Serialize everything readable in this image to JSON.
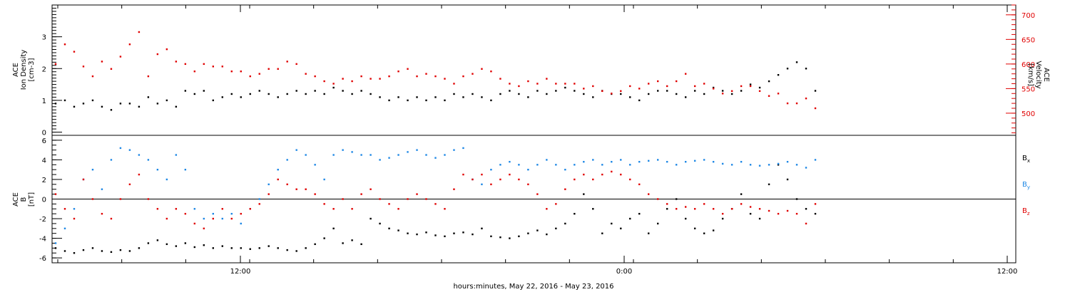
{
  "chart_data": [
    {
      "type": "scatter",
      "panel": "top",
      "left_axis": {
        "label_lines": [
          "ACE",
          "Ion Density",
          "[cm-3]"
        ],
        "ylim": [
          -0.1,
          4.0
        ],
        "ticks": [
          0,
          1,
          2,
          3
        ],
        "tick_labels": [
          "0",
          "1",
          "2",
          "3"
        ],
        "color": "#000000"
      },
      "right_axis": {
        "label_lines": [
          "ACE",
          "Velocity",
          "[km/s]"
        ],
        "ylim": [
          455,
          720
        ],
        "ticks": [
          500,
          550,
          600,
          650,
          700
        ],
        "tick_labels": [
          "500",
          "550",
          "600",
          "650",
          "700"
        ],
        "color": "#e00000"
      },
      "series": [
        {
          "axis": "left",
          "color": "#000000",
          "x": [
            0,
            1,
            2,
            3,
            4,
            5,
            6,
            7,
            8,
            9,
            10,
            11,
            12,
            13,
            14,
            15,
            16,
            17,
            18,
            19,
            20,
            21,
            22,
            23,
            24,
            25,
            26,
            27,
            28,
            29,
            30,
            31,
            32,
            33,
            34,
            35,
            36,
            37,
            38,
            39,
            40,
            41,
            42,
            43,
            44,
            45,
            46,
            47,
            48,
            49,
            50,
            51,
            52,
            53,
            54,
            55,
            56,
            57,
            58,
            59,
            60,
            61,
            62,
            63,
            64,
            65,
            66,
            67,
            68,
            69,
            70,
            71,
            72,
            73,
            74,
            75,
            76,
            77,
            78,
            79,
            80,
            81,
            82
          ],
          "values": [
            0.9,
            1.0,
            0.8,
            0.9,
            1.0,
            0.8,
            0.7,
            0.9,
            0.9,
            0.8,
            1.1,
            0.9,
            1.0,
            0.8,
            1.3,
            1.2,
            1.3,
            1.0,
            1.1,
            1.2,
            1.1,
            1.2,
            1.3,
            1.2,
            1.1,
            1.2,
            1.3,
            1.2,
            1.3,
            1.2,
            1.4,
            1.3,
            1.2,
            1.3,
            1.2,
            1.1,
            1.0,
            1.1,
            1.0,
            1.1,
            1.0,
            1.1,
            1.0,
            1.2,
            1.1,
            1.2,
            1.1,
            1.0,
            1.2,
            1.3,
            1.2,
            1.1,
            1.3,
            1.2,
            1.3,
            1.4,
            1.3,
            1.2,
            1.1,
            1.3,
            1.2,
            1.2,
            1.1,
            1.0,
            1.2,
            1.3,
            1.3,
            1.2,
            1.1,
            1.3,
            1.2,
            1.4,
            1.3,
            1.2,
            1.3,
            1.5,
            1.4,
            1.6,
            1.8,
            2.0,
            2.2,
            2.0,
            1.3
          ]
        },
        {
          "axis": "right",
          "color": "#e00000",
          "x": [
            0,
            1,
            2,
            3,
            4,
            5,
            6,
            7,
            8,
            9,
            10,
            11,
            12,
            13,
            14,
            15,
            16,
            17,
            18,
            19,
            20,
            21,
            22,
            23,
            24,
            25,
            26,
            27,
            28,
            29,
            30,
            31,
            32,
            33,
            34,
            35,
            36,
            37,
            38,
            39,
            40,
            41,
            42,
            43,
            44,
            45,
            46,
            47,
            48,
            49,
            50,
            51,
            52,
            53,
            54,
            55,
            56,
            57,
            58,
            59,
            60,
            61,
            62,
            63,
            64,
            65,
            66,
            67,
            68,
            69,
            70,
            71,
            72,
            73,
            74,
            75,
            76,
            77,
            78,
            79,
            80,
            81,
            82
          ],
          "values": [
            600,
            640,
            625,
            595,
            575,
            605,
            590,
            615,
            640,
            665,
            575,
            620,
            630,
            605,
            600,
            585,
            600,
            595,
            595,
            585,
            585,
            575,
            580,
            590,
            590,
            605,
            600,
            580,
            575,
            565,
            560,
            570,
            565,
            575,
            570,
            570,
            575,
            585,
            590,
            575,
            580,
            575,
            570,
            560,
            575,
            580,
            590,
            585,
            570,
            560,
            555,
            565,
            560,
            570,
            560,
            560,
            560,
            550,
            555,
            545,
            540,
            545,
            555,
            550,
            560,
            565,
            555,
            565,
            580,
            555,
            560,
            550,
            540,
            545,
            555,
            555,
            545,
            535,
            540,
            520,
            520,
            530,
            510
          ]
        }
      ]
    },
    {
      "type": "scatter",
      "panel": "bottom",
      "left_axis": {
        "label_lines": [
          "ACE",
          "B",
          "[nT]"
        ],
        "ylim": [
          -6.5,
          6.5
        ],
        "ticks": [
          -6,
          -4,
          -2,
          0,
          2,
          4,
          6
        ],
        "tick_labels": [
          "-6",
          "-4",
          "-2",
          "0",
          "2",
          "4",
          "6"
        ],
        "zero_line": true
      },
      "x": [
        0,
        1,
        2,
        3,
        4,
        5,
        6,
        7,
        8,
        9,
        10,
        11,
        12,
        13,
        14,
        15,
        16,
        17,
        18,
        19,
        20,
        21,
        22,
        23,
        24,
        25,
        26,
        27,
        28,
        29,
        30,
        31,
        32,
        33,
        34,
        35,
        36,
        37,
        38,
        39,
        40,
        41,
        42,
        43,
        44,
        45,
        46,
        47,
        48,
        49,
        50,
        51,
        52,
        53,
        54,
        55,
        56,
        57,
        58,
        59,
        60,
        61,
        62,
        63,
        64,
        65,
        66,
        67,
        68,
        69,
        70,
        71,
        72,
        73,
        74,
        75,
        76,
        77,
        78,
        79,
        80,
        81,
        82
      ],
      "series": [
        {
          "name": "B",
          "subscript": "x",
          "color": "#000000",
          "values": [
            -5.0,
            -5.3,
            -5.5,
            -5.2,
            -5.0,
            -5.3,
            -5.4,
            -5.2,
            -5.3,
            -5.0,
            -4.5,
            -4.2,
            -4.6,
            -4.8,
            -4.5,
            -4.9,
            -4.7,
            -5.0,
            -4.8,
            -5.0,
            -5.0,
            -5.1,
            -5.0,
            -4.8,
            -5.0,
            -5.2,
            -5.3,
            -5.0,
            -4.6,
            -4.0,
            -3.0,
            -4.5,
            -4.2,
            -4.6,
            -2.0,
            -2.5,
            -3.0,
            -3.2,
            -3.5,
            -3.6,
            -3.4,
            -3.7,
            -3.8,
            -3.5,
            -3.4,
            -3.6,
            -3.0,
            -3.8,
            -3.9,
            -4.0,
            -3.8,
            -3.5,
            -3.2,
            -3.6,
            -3.0,
            -2.5,
            -1.5,
            0.5,
            -1.0,
            -3.5,
            -2.5,
            -3.0,
            -2.0,
            -1.5,
            -3.5,
            -2.5,
            -1.0,
            0.0,
            -2.0,
            -3.0,
            -3.5,
            -3.2,
            -2.0,
            -1.0,
            0.5,
            -1.5,
            -2.0,
            1.5,
            3.5,
            2.0,
            0.0,
            -1.0,
            -1.5
          ]
        },
        {
          "name": "B",
          "subscript": "y",
          "color": "#1e88e5",
          "values": [
            -4.5,
            -3.0,
            -1.0,
            2.0,
            3.0,
            1.0,
            4.0,
            5.2,
            5.0,
            4.5,
            4.0,
            3.0,
            2.0,
            4.5,
            3.0,
            -1.0,
            -2.0,
            -1.5,
            -2.0,
            -1.5,
            -2.5,
            -1.0,
            0.0,
            1.5,
            3.0,
            4.0,
            5.0,
            4.5,
            3.5,
            2.0,
            4.5,
            5.0,
            4.8,
            4.5,
            4.5,
            4.0,
            4.2,
            4.5,
            4.8,
            5.0,
            4.5,
            4.2,
            4.5,
            5.0,
            5.2,
            2.0,
            1.5,
            3.0,
            3.5,
            3.8,
            3.5,
            3.0,
            3.5,
            4.0,
            3.5,
            3.0,
            3.5,
            3.8,
            4.0,
            3.5,
            3.8,
            4.0,
            3.5,
            3.8,
            3.9,
            4.0,
            3.8,
            3.5,
            3.8,
            3.9,
            4.0,
            3.8,
            3.6,
            3.5,
            3.8,
            3.5,
            3.4,
            3.5,
            3.6,
            3.8,
            3.5,
            3.2,
            4.0
          ]
        },
        {
          "name": "B",
          "subscript": "z",
          "color": "#e00000",
          "values": [
            0.5,
            -1.0,
            -2.0,
            2.0,
            0.0,
            -1.5,
            -2.0,
            0.0,
            1.5,
            2.5,
            0.0,
            -1.0,
            -2.0,
            -1.0,
            -1.5,
            -2.5,
            -3.0,
            -2.0,
            -1.0,
            -2.0,
            -1.5,
            -1.0,
            -0.5,
            0.5,
            2.0,
            1.5,
            1.0,
            1.0,
            0.5,
            -0.5,
            -1.0,
            0.0,
            -1.0,
            0.5,
            1.0,
            0.0,
            -0.5,
            -1.0,
            0.0,
            0.5,
            0.0,
            -0.5,
            -1.0,
            1.0,
            2.5,
            2.0,
            2.5,
            1.5,
            2.0,
            2.5,
            2.0,
            1.5,
            0.5,
            -1.0,
            -0.5,
            1.0,
            2.0,
            2.5,
            2.0,
            2.5,
            2.8,
            2.5,
            2.0,
            1.5,
            0.5,
            0.0,
            -0.5,
            -1.0,
            -0.8,
            -1.0,
            -0.5,
            -1.0,
            -1.5,
            -1.0,
            -0.5,
            -0.8,
            -1.0,
            -1.2,
            -1.5,
            -1.2,
            -1.5,
            -2.5,
            -0.5
          ]
        }
      ]
    }
  ],
  "x_axis": {
    "label": "hours:minutes, May 22, 2016 - May 23, 2016",
    "ticks": [
      {
        "position_index": 0,
        "label": "12:00"
      },
      {
        "position_index": 1,
        "label": "0:00"
      },
      {
        "position_index": 2,
        "label": "12:00"
      }
    ]
  }
}
